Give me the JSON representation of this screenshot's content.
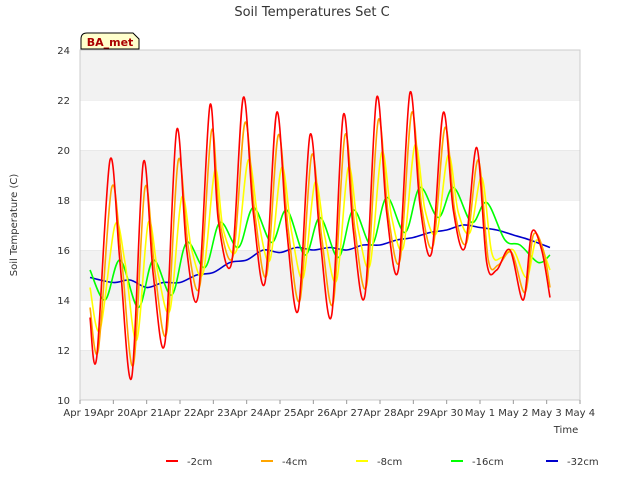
{
  "chart_data": {
    "type": "line",
    "title": "Soil Temperatures Set C",
    "xlabel": "Time",
    "ylabel": "Soil Temperature (C)",
    "ylim": [
      10,
      24
    ],
    "yticks": [
      10,
      12,
      14,
      16,
      18,
      20,
      22,
      24
    ],
    "xlim": [
      0,
      15
    ],
    "xticks": [
      {
        "x": 0,
        "label": "Apr 19"
      },
      {
        "x": 1,
        "label": "Apr 20"
      },
      {
        "x": 2,
        "label": "Apr 21"
      },
      {
        "x": 3,
        "label": "Apr 22"
      },
      {
        "x": 4,
        "label": "Apr 23"
      },
      {
        "x": 5,
        "label": "Apr 24"
      },
      {
        "x": 6,
        "label": "Apr 25"
      },
      {
        "x": 7,
        "label": "Apr 26"
      },
      {
        "x": 8,
        "label": "Apr 27"
      },
      {
        "x": 9,
        "label": "Apr 28"
      },
      {
        "x": 10,
        "label": "Apr 29"
      },
      {
        "x": 11,
        "label": "Apr 30"
      },
      {
        "x": 12,
        "label": "May 1"
      },
      {
        "x": 13,
        "label": "May 2"
      },
      {
        "x": 14,
        "label": "May 3"
      },
      {
        "x": 15,
        "label": "May 4"
      }
    ],
    "grid": "horizontal bands",
    "legend_position": "bottom",
    "annotation": "BA_met",
    "series": [
      {
        "name": "-2cm",
        "color": "#ff0000",
        "x": [
          0.3,
          0.5,
          0.9,
          1.2,
          1.55,
          1.9,
          2.2,
          2.55,
          2.9,
          3.2,
          3.55,
          3.9,
          4.15,
          4.55,
          4.9,
          5.2,
          5.55,
          5.9,
          6.2,
          6.55,
          6.9,
          7.2,
          7.55,
          7.9,
          8.2,
          8.55,
          8.9,
          9.2,
          9.55,
          9.9,
          10.2,
          10.55,
          10.9,
          11.2,
          11.55,
          11.9,
          12.2,
          12.5,
          12.9,
          13.3,
          13.55,
          13.85,
          14.1
        ],
        "values": [
          13.3,
          11.7,
          19.6,
          15.5,
          10.9,
          19.5,
          15.0,
          12.3,
          20.8,
          16.0,
          14.2,
          21.8,
          17.2,
          15.5,
          22.1,
          17.5,
          14.7,
          21.5,
          16.8,
          13.6,
          20.6,
          16.5,
          13.4,
          21.4,
          16.8,
          14.2,
          22.1,
          17.5,
          15.2,
          22.3,
          17.8,
          15.9,
          21.5,
          17.6,
          16.1,
          20.1,
          15.5,
          15.2,
          16.0,
          14.0,
          16.7,
          16.0,
          14.1
        ]
      },
      {
        "name": "-4cm",
        "color": "#ffa500",
        "x": [
          0.3,
          0.55,
          0.95,
          1.25,
          1.6,
          1.95,
          2.25,
          2.6,
          2.95,
          3.25,
          3.6,
          3.95,
          4.2,
          4.6,
          4.95,
          5.25,
          5.6,
          5.95,
          6.25,
          6.6,
          6.95,
          7.25,
          7.6,
          7.95,
          8.25,
          8.6,
          8.95,
          9.25,
          9.6,
          9.95,
          10.25,
          10.6,
          10.95,
          11.25,
          11.6,
          11.95,
          12.25,
          12.55,
          12.95,
          13.35,
          13.6,
          13.9,
          14.1
        ],
        "values": [
          13.7,
          12.0,
          18.5,
          15.6,
          11.4,
          18.5,
          15.1,
          12.7,
          19.6,
          16.1,
          14.6,
          20.8,
          17.1,
          15.8,
          21.1,
          17.4,
          15.0,
          20.6,
          16.8,
          14.0,
          19.8,
          16.5,
          13.9,
          20.6,
          16.8,
          14.6,
          21.2,
          17.4,
          15.6,
          21.5,
          17.7,
          16.2,
          20.9,
          17.5,
          16.3,
          19.6,
          15.6,
          15.4,
          15.9,
          14.3,
          16.6,
          16.0,
          14.5
        ]
      },
      {
        "name": "-8cm",
        "color": "#ffff00",
        "x": [
          0.3,
          0.6,
          1.05,
          1.35,
          1.7,
          2.05,
          2.35,
          2.7,
          3.05,
          3.35,
          3.7,
          4.05,
          4.3,
          4.7,
          5.05,
          5.35,
          5.7,
          6.05,
          6.35,
          6.7,
          7.05,
          7.35,
          7.7,
          8.05,
          8.35,
          8.7,
          9.05,
          9.35,
          9.7,
          10.05,
          10.35,
          10.7,
          11.05,
          11.35,
          11.7,
          12.05,
          12.35,
          12.65,
          13.0,
          13.4,
          13.7,
          14.1
        ],
        "values": [
          14.5,
          12.8,
          17.0,
          15.5,
          12.4,
          17.1,
          15.0,
          13.6,
          18.1,
          16.0,
          15.1,
          19.2,
          16.8,
          16.0,
          19.6,
          17.2,
          15.6,
          19.3,
          16.7,
          14.9,
          18.7,
          16.5,
          14.8,
          19.3,
          16.8,
          15.4,
          19.9,
          17.3,
          16.1,
          20.2,
          17.6,
          16.7,
          19.8,
          17.5,
          16.7,
          18.9,
          15.9,
          15.7,
          16.0,
          14.9,
          16.4,
          15.2
        ]
      },
      {
        "name": "-16cm",
        "color": "#00ff00",
        "x": [
          0.3,
          0.75,
          1.2,
          1.75,
          2.2,
          2.75,
          3.2,
          3.75,
          4.2,
          4.75,
          5.2,
          5.75,
          6.2,
          6.75,
          7.2,
          7.75,
          8.2,
          8.75,
          9.2,
          9.75,
          10.2,
          10.75,
          11.2,
          11.75,
          12.2,
          12.75,
          13.2,
          13.75,
          14.1
        ],
        "values": [
          15.2,
          14.0,
          15.6,
          13.7,
          15.6,
          14.2,
          16.3,
          15.3,
          17.1,
          16.1,
          17.7,
          16.3,
          17.6,
          15.8,
          17.3,
          15.7,
          17.6,
          16.2,
          18.1,
          16.7,
          18.5,
          17.3,
          18.5,
          17.1,
          17.9,
          16.4,
          16.2,
          15.5,
          15.8
        ]
      },
      {
        "name": "-32cm",
        "color": "#0000cc",
        "x": [
          0.3,
          1.0,
          1.5,
          2.0,
          2.5,
          3.0,
          3.5,
          4.0,
          4.5,
          5.0,
          5.5,
          6.0,
          6.5,
          7.0,
          7.5,
          8.0,
          8.5,
          9.0,
          9.5,
          10.0,
          10.5,
          11.0,
          11.5,
          12.0,
          12.5,
          13.0,
          13.5,
          14.1
        ],
        "values": [
          14.9,
          14.7,
          14.8,
          14.5,
          14.7,
          14.7,
          15.0,
          15.1,
          15.5,
          15.6,
          16.0,
          15.9,
          16.1,
          16.0,
          16.1,
          16.0,
          16.2,
          16.2,
          16.4,
          16.5,
          16.7,
          16.8,
          17.0,
          16.9,
          16.8,
          16.6,
          16.4,
          16.1
        ]
      }
    ]
  }
}
